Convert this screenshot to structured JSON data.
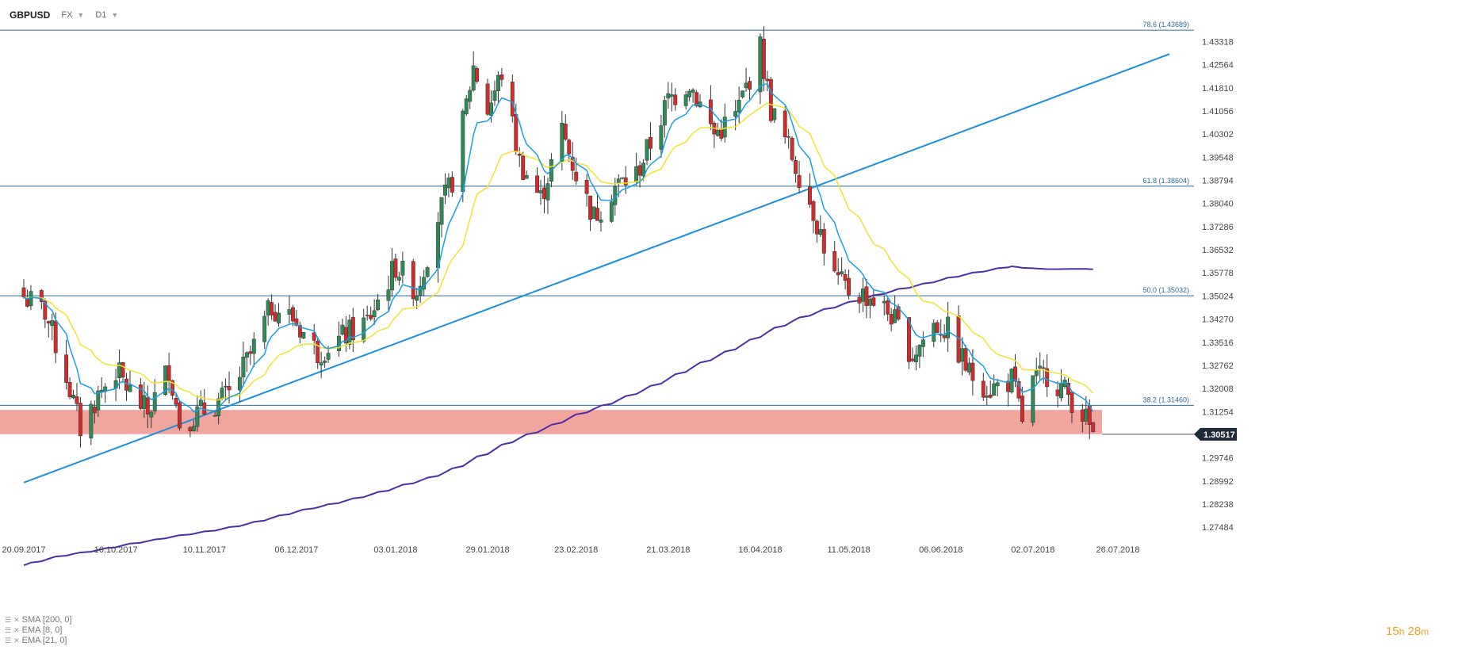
{
  "header": {
    "symbol": "GBPUSD",
    "market": "FX",
    "timeframe": "D1"
  },
  "timer": {
    "hours": "15",
    "h": "h",
    "minutes": "28",
    "m": "m"
  },
  "indicators": [
    {
      "label": "SMA [200, 0]",
      "color": "#4b2fa8"
    },
    {
      "label": "EMA [8, 0]",
      "color": "#1a9ee6"
    },
    {
      "label": "EMA [21, 0]",
      "color": "#f5e130"
    }
  ],
  "chart_data": {
    "type": "candlestick",
    "instrument": "GBPUSD",
    "timeframe": "D1",
    "ylim": [
      1.2705,
      1.4395
    ],
    "y_ticks": [
      "1.43318",
      "1.42564",
      "1.41810",
      "1.41056",
      "1.40302",
      "1.39548",
      "1.38794",
      "1.38040",
      "1.37286",
      "1.36532",
      "1.35778",
      "1.35024",
      "1.34270",
      "1.33516",
      "1.32762",
      "1.32008",
      "1.31254",
      "1.30500",
      "1.29746",
      "1.28992",
      "1.28238",
      "1.27484"
    ],
    "x_ticks": [
      "20.09.2017",
      "16.10.2017",
      "10.11.2017",
      "06.12.2017",
      "03.01.2018",
      "29.01.2018",
      "23.02.2018",
      "21.03.2018",
      "16.04.2018",
      "11.05.2018",
      "06.06.2018",
      "02.07.2018",
      "26.07.2018"
    ],
    "current_price": "1.30517",
    "fib_levels": [
      {
        "label": "78.6 (1.43689)",
        "value": 1.43689
      },
      {
        "label": "61.8 (1.38604)",
        "value": 1.38604
      },
      {
        "label": "50.0 (1.35032)",
        "value": 1.35032
      },
      {
        "label": "38.2 (1.31460)",
        "value": 1.3146
      }
    ],
    "support_zone": {
      "from": 1.3052,
      "to": 1.3131,
      "color": "#f0a09a"
    },
    "trendline": {
      "start": [
        "20.09.2017",
        1.2894
      ],
      "end": [
        "26.07.2018",
        1.4196
      ],
      "color": "#1a8fe0"
    },
    "candle_colors": {
      "up": "#2e8b57",
      "down": "#d22b2b"
    },
    "price_path": [
      [
        "20.09.2017",
        1.35
      ],
      [
        "26.09.2017",
        1.345
      ],
      [
        "02.10.2017",
        1.324
      ],
      [
        "06.10.2017",
        1.307
      ],
      [
        "11.10.2017",
        1.318
      ],
      [
        "16.10.2017",
        1.326
      ],
      [
        "20.10.2017",
        1.319
      ],
      [
        "25.10.2017",
        1.312
      ],
      [
        "31.10.2017",
        1.327
      ],
      [
        "03.11.2017",
        1.309
      ],
      [
        "10.11.2017",
        1.313
      ],
      [
        "17.11.2017",
        1.318
      ],
      [
        "23.11.2017",
        1.331
      ],
      [
        "29.11.2017",
        1.347
      ],
      [
        "05.12.2017",
        1.343
      ],
      [
        "12.12.2017",
        1.332
      ],
      [
        "18.12.2017",
        1.336
      ],
      [
        "26.12.2017",
        1.342
      ],
      [
        "03.01.2018",
        1.36
      ],
      [
        "09.01.2018",
        1.352
      ],
      [
        "15.01.2018",
        1.376
      ],
      [
        "19.01.2018",
        1.388
      ],
      [
        "25.01.2018",
        1.425
      ],
      [
        "29.01.2018",
        1.411
      ],
      [
        "02.02.2018",
        1.423
      ],
      [
        "07.02.2018",
        1.394
      ],
      [
        "13.02.2018",
        1.382
      ],
      [
        "19.02.2018",
        1.404
      ],
      [
        "23.02.2018",
        1.39
      ],
      [
        "28.02.2018",
        1.376
      ],
      [
        "06.03.2018",
        1.386
      ],
      [
        "12.03.2018",
        1.39
      ],
      [
        "16.03.2018",
        1.4
      ],
      [
        "21.03.2018",
        1.414
      ],
      [
        "27.03.2018",
        1.42
      ],
      [
        "03.04.2018",
        1.403
      ],
      [
        "09.04.2018",
        1.409
      ],
      [
        "16.04.2018",
        1.431
      ],
      [
        "19.04.2018",
        1.411
      ],
      [
        "25.04.2018",
        1.396
      ],
      [
        "01.05.2018",
        1.378
      ],
      [
        "07.05.2018",
        1.356
      ],
      [
        "11.05.2018",
        1.352
      ],
      [
        "17.05.2018",
        1.35
      ],
      [
        "23.05.2018",
        1.344
      ],
      [
        "29.05.2018",
        1.331
      ],
      [
        "04.06.2018",
        1.341
      ],
      [
        "08.06.2018",
        1.339
      ],
      [
        "14.06.2018",
        1.325
      ],
      [
        "20.06.2018",
        1.32
      ],
      [
        "26.06.2018",
        1.323
      ],
      [
        "29.06.2018",
        1.31
      ],
      [
        "02.07.2018",
        1.322
      ],
      [
        "06.07.2018",
        1.325
      ],
      [
        "12.07.2018",
        1.318
      ],
      [
        "16.07.2018",
        1.312
      ],
      [
        "19.07.2018",
        1.3052
      ]
    ]
  }
}
